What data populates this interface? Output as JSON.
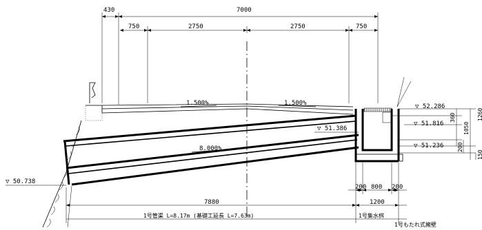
{
  "dimensions": {
    "top_430": "430",
    "top_7000": "7000",
    "top_750_left": "750",
    "top_2750_left": "2750",
    "top_2750_right": "2750",
    "top_750_right": "750",
    "bottom_7880": "7880",
    "bottom_1200": "1200",
    "bottom_200_left": "200",
    "bottom_800": "800",
    "bottom_200_right": "200",
    "right_360": "360",
    "right_1050": "1050",
    "right_1260": "1260",
    "right_200": "200",
    "right_150": "150"
  },
  "slopes": {
    "left": "1.500%",
    "right": "1.500%",
    "pipe": "8.000%"
  },
  "elevations": {
    "e1": "▽ 52.286",
    "e2": "▽ 51.816",
    "e3": "▽ 51.386",
    "e4": "▽ 51.236",
    "e5": "▽ 50.738"
  },
  "labels": {
    "pipe_label": "1号管渠 L=8.17m (基礎工延長 L=7.63m)",
    "basin_label": "1号集水桝",
    "wall_label": "1号もたれ式擁壁"
  }
}
